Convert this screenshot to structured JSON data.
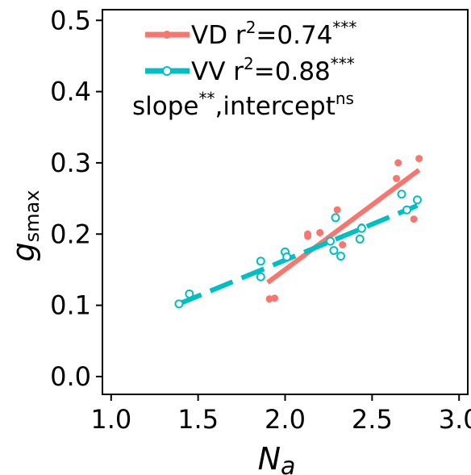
{
  "chart_data": {
    "type": "scatter",
    "x_ticks": [
      "1.0",
      "1.5",
      "2.0",
      "2.5",
      "3.0"
    ],
    "y_ticks": [
      "0.0",
      "0.1",
      "0.2",
      "0.3",
      "0.4",
      "0.5"
    ],
    "xlim": [
      0.95,
      3.05
    ],
    "ylim": [
      -0.025,
      0.515
    ],
    "xlabel": {
      "main": "N",
      "sub": "a"
    },
    "ylabel": {
      "main": "g",
      "sub": "smax"
    },
    "legend_placement": "top-left",
    "annotation": {
      "base1": "slope",
      "sup1": "**",
      "sep": ",",
      "base2": "intercept",
      "sup2": "ns"
    },
    "series": [
      {
        "id": "VD",
        "name": "VD",
        "stat_base": " r",
        "stat_sup1": "2",
        "stat_mid": "=0.74",
        "stat_sup2": "***",
        "color": "#F8766D",
        "marker": "filled",
        "line_style": "solid",
        "points": [
          [
            1.91,
            0.109
          ],
          [
            1.94,
            0.11
          ],
          [
            2.13,
            0.2
          ],
          [
            2.13,
            0.197
          ],
          [
            2.2,
            0.202
          ],
          [
            2.3,
            0.234
          ],
          [
            2.33,
            0.185
          ],
          [
            2.44,
            0.21
          ],
          [
            2.65,
            0.3
          ],
          [
            2.64,
            0.278
          ],
          [
            2.74,
            0.221
          ],
          [
            2.77,
            0.306
          ]
        ],
        "fit": [
          [
            1.9,
            0.132
          ],
          [
            2.77,
            0.29
          ]
        ]
      },
      {
        "id": "VV",
        "name": "VV",
        "stat_base": " r",
        "stat_sup1": "2",
        "stat_mid": "=0.88",
        "stat_sup2": "***",
        "color": "#00BFC4",
        "marker": "open",
        "line_style": "dashed",
        "points": [
          [
            1.39,
            0.102
          ],
          [
            1.45,
            0.116
          ],
          [
            1.86,
            0.162
          ],
          [
            1.86,
            0.14
          ],
          [
            2.0,
            0.175
          ],
          [
            2.01,
            0.168
          ],
          [
            2.26,
            0.19
          ],
          [
            2.28,
            0.177
          ],
          [
            2.29,
            0.223
          ],
          [
            2.32,
            0.169
          ],
          [
            2.43,
            0.193
          ],
          [
            2.44,
            0.208
          ],
          [
            2.67,
            0.256
          ],
          [
            2.7,
            0.234
          ],
          [
            2.76,
            0.248
          ]
        ],
        "fit": [
          [
            1.39,
            0.102
          ],
          [
            2.76,
            0.24
          ]
        ]
      }
    ]
  }
}
